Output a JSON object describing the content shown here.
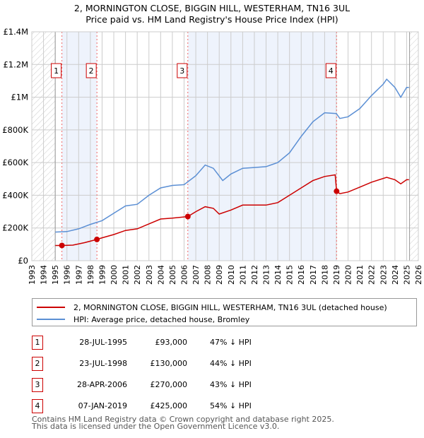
{
  "title_line1": "2, MORNINGTON CLOSE, BIGGIN HILL, WESTERHAM, TN16 3UL",
  "title_line2": "Price paid vs. HM Land Registry's House Price Index (HPI)",
  "legend": {
    "property": "2, MORNINGTON CLOSE, BIGGIN HILL, WESTERHAM, TN16 3UL (detached house)",
    "hpi": "HPI: Average price, detached house, Bromley"
  },
  "colors": {
    "property": "#cc0000",
    "hpi": "#5b8fd4",
    "band": "#eef3fc"
  },
  "sales": [
    {
      "n": "1",
      "date": "28-JUL-1995",
      "price": "£93,000",
      "pct": "47% ↓ HPI"
    },
    {
      "n": "2",
      "date": "23-JUL-1998",
      "price": "£130,000",
      "pct": "44% ↓ HPI"
    },
    {
      "n": "3",
      "date": "28-APR-2006",
      "price": "£270,000",
      "pct": "43% ↓ HPI"
    },
    {
      "n": "4",
      "date": "07-JAN-2019",
      "price": "£425,000",
      "pct": "54% ↓ HPI"
    }
  ],
  "footer1": "Contains HM Land Registry data © Crown copyright and database right 2025.",
  "footer2": "This data is licensed under the Open Government Licence v3.0.",
  "chart_data": {
    "type": "line",
    "xlim": [
      1993,
      2026
    ],
    "ylim": [
      0,
      1400000
    ],
    "xticks": [
      "1993",
      "1994",
      "1995",
      "1996",
      "1997",
      "1998",
      "1999",
      "2000",
      "2001",
      "2002",
      "2003",
      "2004",
      "2005",
      "2006",
      "2007",
      "2008",
      "2009",
      "2010",
      "2011",
      "2012",
      "2013",
      "2014",
      "2015",
      "2016",
      "2017",
      "2018",
      "2019",
      "2020",
      "2021",
      "2022",
      "2023",
      "2024",
      "2025",
      "2026"
    ],
    "yticks": [
      {
        "v": 0,
        "l": "£0"
      },
      {
        "v": 200000,
        "l": "£200K"
      },
      {
        "v": 400000,
        "l": "£400K"
      },
      {
        "v": 600000,
        "l": "£600K"
      },
      {
        "v": 800000,
        "l": "£800K"
      },
      {
        "v": 1000000,
        "l": "£1M"
      },
      {
        "v": 1200000,
        "l": "£1.2M"
      },
      {
        "v": 1400000,
        "l": "£1.4M"
      }
    ],
    "hatch": [
      [
        1993,
        1995
      ],
      [
        2025.25,
        2026
      ]
    ],
    "sale_points": [
      {
        "x": 1995.57,
        "y": 93000,
        "label": "1"
      },
      {
        "x": 1998.56,
        "y": 130000,
        "label": "2"
      },
      {
        "x": 2006.32,
        "y": 270000,
        "label": "3"
      },
      {
        "x": 2019.02,
        "y": 425000,
        "label": "4"
      }
    ],
    "series": [
      {
        "name": "hpi",
        "points": [
          [
            1995,
            175000
          ],
          [
            1996,
            178000
          ],
          [
            1997,
            195000
          ],
          [
            1998,
            222000
          ],
          [
            1999,
            245000
          ],
          [
            2000,
            290000
          ],
          [
            2001,
            335000
          ],
          [
            2002,
            345000
          ],
          [
            2003,
            400000
          ],
          [
            2004,
            445000
          ],
          [
            2005,
            460000
          ],
          [
            2006,
            465000
          ],
          [
            2007,
            520000
          ],
          [
            2007.8,
            585000
          ],
          [
            2008.5,
            565000
          ],
          [
            2009.3,
            490000
          ],
          [
            2010,
            530000
          ],
          [
            2011,
            565000
          ],
          [
            2012,
            570000
          ],
          [
            2013,
            575000
          ],
          [
            2014,
            600000
          ],
          [
            2015,
            660000
          ],
          [
            2016,
            760000
          ],
          [
            2017,
            850000
          ],
          [
            2018,
            905000
          ],
          [
            2019,
            900000
          ],
          [
            2019.3,
            870000
          ],
          [
            2020,
            880000
          ],
          [
            2021,
            930000
          ],
          [
            2022,
            1010000
          ],
          [
            2023,
            1080000
          ],
          [
            2023.3,
            1110000
          ],
          [
            2024,
            1060000
          ],
          [
            2024.5,
            1000000
          ],
          [
            2025,
            1060000
          ],
          [
            2025.2,
            1060000
          ]
        ]
      },
      {
        "name": "property",
        "points": [
          [
            1995,
            93000
          ],
          [
            1995.57,
            93000
          ],
          [
            1996.5,
            95000
          ],
          [
            1997.5,
            110000
          ],
          [
            1998.56,
            130000
          ],
          [
            1999,
            140000
          ],
          [
            2000,
            160000
          ],
          [
            2001,
            185000
          ],
          [
            2002,
            195000
          ],
          [
            2003,
            225000
          ],
          [
            2004,
            255000
          ],
          [
            2005,
            260000
          ],
          [
            2006.32,
            270000
          ],
          [
            2007,
            300000
          ],
          [
            2007.8,
            330000
          ],
          [
            2008.5,
            320000
          ],
          [
            2009,
            285000
          ],
          [
            2010,
            310000
          ],
          [
            2011,
            340000
          ],
          [
            2012,
            340000
          ],
          [
            2013,
            340000
          ],
          [
            2014,
            355000
          ],
          [
            2015,
            400000
          ],
          [
            2016,
            445000
          ],
          [
            2017,
            490000
          ],
          [
            2018,
            515000
          ],
          [
            2018.9,
            525000
          ],
          [
            2019.02,
            425000
          ],
          [
            2019.3,
            410000
          ],
          [
            2020,
            420000
          ],
          [
            2021,
            450000
          ],
          [
            2022,
            480000
          ],
          [
            2023.3,
            510000
          ],
          [
            2024,
            495000
          ],
          [
            2024.5,
            470000
          ],
          [
            2025,
            495000
          ],
          [
            2025.2,
            495000
          ]
        ]
      }
    ]
  }
}
